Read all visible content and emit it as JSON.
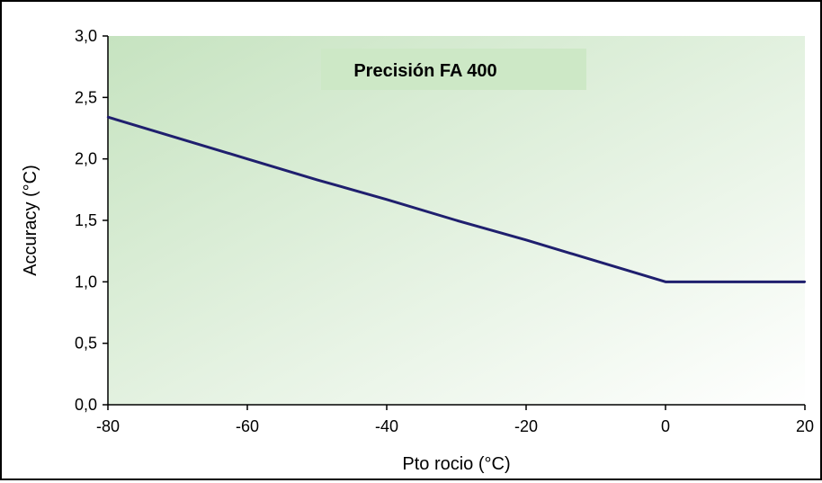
{
  "chart_data": {
    "type": "line",
    "title": "Precisión FA 400",
    "xlabel": "Pto rocio (°C)",
    "ylabel": "Accuracy (°C)",
    "xlim": [
      -80,
      20
    ],
    "ylim": [
      0,
      3
    ],
    "x_ticks": [
      -80,
      -60,
      -40,
      -20,
      0,
      20
    ],
    "x_tick_labels": [
      "-80",
      "-60",
      "-40",
      "-20",
      "0",
      "20"
    ],
    "y_ticks": [
      0,
      0.5,
      1,
      1.5,
      2,
      2.5,
      3
    ],
    "y_tick_labels": [
      "0,0",
      "0,5",
      "1,0",
      "1,5",
      "2,0",
      "2,5",
      "3,0"
    ],
    "grid": false,
    "legend": "none",
    "series": [
      {
        "x": [
          -80,
          -70,
          -60,
          -50,
          -40,
          -30,
          -20,
          -10,
          0,
          10,
          20
        ],
        "y": [
          2.34,
          2.17,
          2.0,
          1.83,
          1.67,
          1.5,
          1.34,
          1.17,
          1.0,
          1.0,
          1.0
        ]
      }
    ],
    "colors": {
      "line": "#1f1f6e",
      "plot_bg_dark": "#c6e3c0",
      "plot_bg_light": "#ffffff",
      "title_box": "#cde8c6"
    }
  }
}
